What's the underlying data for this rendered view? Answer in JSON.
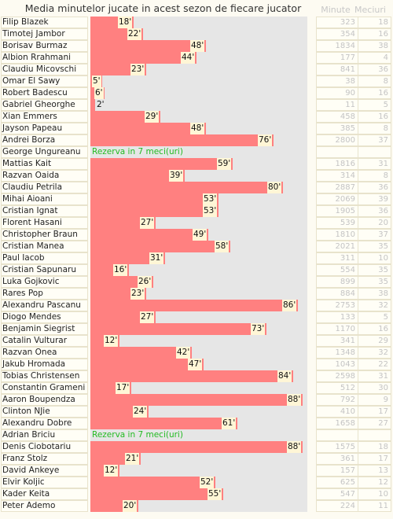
{
  "title": "Media minutelor jucate in acest sezon de fiecare jucator",
  "columns": {
    "minutes": "Minute",
    "games": "Meciuri"
  },
  "colors": {
    "bar": "#ff8080",
    "track": "#e6e6e6",
    "reserve_text": "#22bb22"
  },
  "chart_data": {
    "type": "bar",
    "orientation": "horizontal",
    "title": "Media minutelor jucate in acest sezon de fiecare jucator",
    "xlim": [
      0,
      90
    ],
    "value_suffix": "'",
    "players": [
      {
        "name": "Filip Blazek",
        "avg": 18,
        "minutes": "323",
        "games": "18"
      },
      {
        "name": "Timotej Jambor",
        "avg": 22,
        "minutes": "354",
        "games": "16"
      },
      {
        "name": "Borisav Burmaz",
        "avg": 48,
        "minutes": "1834",
        "games": "38"
      },
      {
        "name": "Albion Rrahmani",
        "avg": 44,
        "minutes": "177",
        "games": "4"
      },
      {
        "name": "Claudiu Micovschi",
        "avg": 23,
        "minutes": "841",
        "games": "36"
      },
      {
        "name": "Omar El Sawy",
        "avg": 5,
        "minutes": "38",
        "games": "8"
      },
      {
        "name": "Robert Badescu",
        "avg": 6,
        "minutes": "90",
        "games": "16"
      },
      {
        "name": "Gabriel Gheorghe",
        "avg": 2,
        "minutes": "11",
        "games": "5"
      },
      {
        "name": "Xian Emmers",
        "avg": 29,
        "minutes": "458",
        "games": "16"
      },
      {
        "name": "Jayson Papeau",
        "avg": 48,
        "minutes": "385",
        "games": "8"
      },
      {
        "name": "Andrei Borza",
        "avg": 76,
        "minutes": "2800",
        "games": "37"
      },
      {
        "name": "George Ungureanu",
        "avg": null,
        "reserve": "Rezerva in 7 meci(uri)",
        "minutes": "",
        "games": ""
      },
      {
        "name": "Mattias Kait",
        "avg": 59,
        "minutes": "1816",
        "games": "31"
      },
      {
        "name": "Razvan Oaida",
        "avg": 39,
        "minutes": "314",
        "games": "8"
      },
      {
        "name": "Claudiu Petrila",
        "avg": 80,
        "minutes": "2887",
        "games": "36"
      },
      {
        "name": "Mihai Aioani",
        "avg": 53,
        "minutes": "2069",
        "games": "39"
      },
      {
        "name": "Cristian Ignat",
        "avg": 53,
        "minutes": "1905",
        "games": "36"
      },
      {
        "name": "Florent Hasani",
        "avg": 27,
        "minutes": "539",
        "games": "20"
      },
      {
        "name": "Christopher Braun",
        "avg": 49,
        "minutes": "1810",
        "games": "37"
      },
      {
        "name": "Cristian Manea",
        "avg": 58,
        "minutes": "2021",
        "games": "35"
      },
      {
        "name": "Paul Iacob",
        "avg": 31,
        "minutes": "311",
        "games": "10"
      },
      {
        "name": "Cristian Sapunaru",
        "avg": 16,
        "minutes": "554",
        "games": "35"
      },
      {
        "name": "Luka Gojkovic",
        "avg": 26,
        "minutes": "899",
        "games": "35"
      },
      {
        "name": "Rares Pop",
        "avg": 23,
        "minutes": "884",
        "games": "38"
      },
      {
        "name": "Alexandru Pascanu",
        "avg": 86,
        "minutes": "2753",
        "games": "32"
      },
      {
        "name": "Diogo Mendes",
        "avg": 27,
        "minutes": "133",
        "games": "5"
      },
      {
        "name": "Benjamin Siegrist",
        "avg": 73,
        "minutes": "1170",
        "games": "16"
      },
      {
        "name": "Catalin Vulturar",
        "avg": 12,
        "minutes": "341",
        "games": "29"
      },
      {
        "name": "Razvan Onea",
        "avg": 42,
        "minutes": "1348",
        "games": "32"
      },
      {
        "name": "Jakub Hromada",
        "avg": 47,
        "minutes": "1043",
        "games": "22"
      },
      {
        "name": "Tobias Christensen",
        "avg": 84,
        "minutes": "2598",
        "games": "31"
      },
      {
        "name": "Constantin Grameni",
        "avg": 17,
        "minutes": "512",
        "games": "30"
      },
      {
        "name": "Aaron Boupendza",
        "avg": 88,
        "minutes": "792",
        "games": "9"
      },
      {
        "name": "Clinton NJie",
        "avg": 24,
        "minutes": "410",
        "games": "17"
      },
      {
        "name": "Alexandru Dobre",
        "avg": 61,
        "minutes": "1658",
        "games": "27"
      },
      {
        "name": "Adrian Briciu",
        "avg": null,
        "reserve": "Rezerva in 7 meci(uri)",
        "minutes": "",
        "games": ""
      },
      {
        "name": "Denis Ciobotariu",
        "avg": 88,
        "minutes": "1575",
        "games": "18"
      },
      {
        "name": "Franz Stolz",
        "avg": 21,
        "minutes": "361",
        "games": "17"
      },
      {
        "name": "David Ankeye",
        "avg": 12,
        "minutes": "157",
        "games": "13"
      },
      {
        "name": "Elvir Koljic",
        "avg": 52,
        "minutes": "625",
        "games": "12"
      },
      {
        "name": "Kader Keita",
        "avg": 55,
        "minutes": "547",
        "games": "10"
      },
      {
        "name": "Peter Ademo",
        "avg": 20,
        "minutes": "224",
        "games": "11"
      }
    ]
  }
}
